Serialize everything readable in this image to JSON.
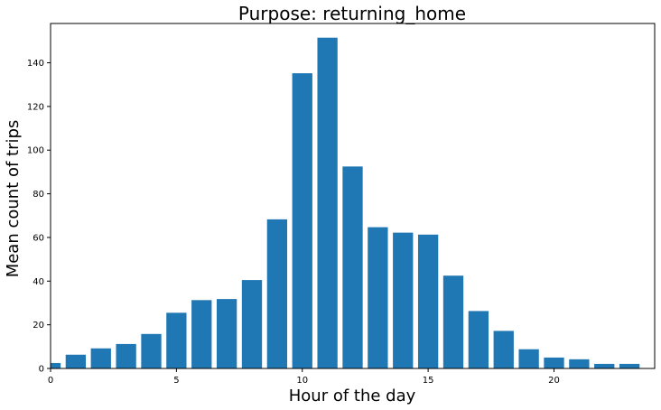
{
  "chart_data": {
    "type": "bar",
    "title": "Purpose: returning_home",
    "xlabel": "Hour of the day",
    "ylabel": "Mean count of trips",
    "x": [
      0,
      1,
      2,
      3,
      4,
      5,
      6,
      7,
      8,
      9,
      10,
      11,
      12,
      13,
      14,
      15,
      16,
      17,
      18,
      19,
      20,
      21,
      22,
      23
    ],
    "values": [
      2.5,
      6.3,
      9.2,
      11.2,
      15.8,
      25.5,
      31.3,
      31.8,
      40.5,
      68.3,
      135.2,
      151.5,
      92.5,
      64.7,
      62.2,
      61.3,
      42.5,
      26.3,
      17.2,
      8.8,
      5.0,
      4.2,
      2.1,
      2.1
    ],
    "xlim": [
      0,
      24
    ],
    "ylim": [
      0,
      158
    ],
    "xticks": [
      0,
      5,
      10,
      15,
      20
    ],
    "yticks": [
      0,
      20,
      40,
      60,
      80,
      100,
      120,
      140
    ],
    "bar_color": "#1f77b4",
    "grid": false,
    "legend": "none"
  }
}
